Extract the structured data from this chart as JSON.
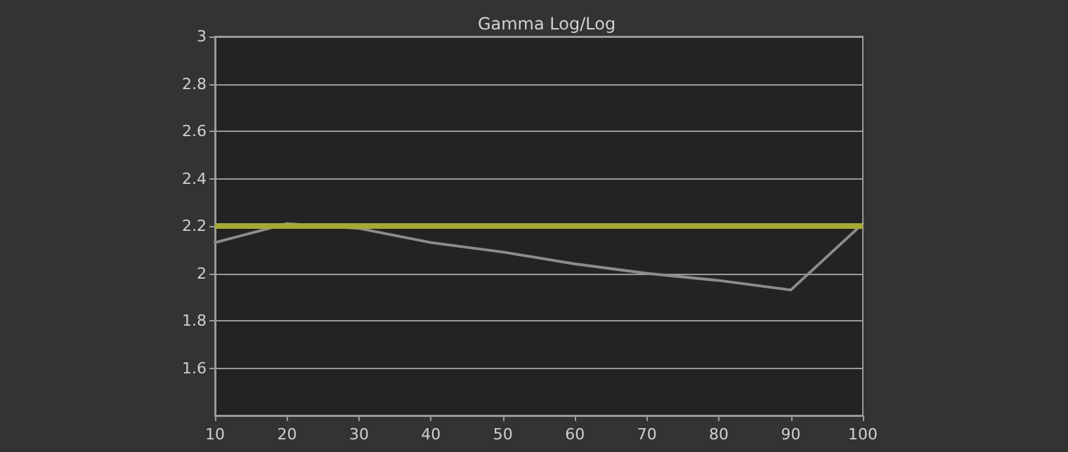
{
  "chart_data": {
    "type": "line",
    "title": "Gamma Log/Log",
    "x": [
      10,
      20,
      30,
      40,
      50,
      60,
      70,
      80,
      90,
      100
    ],
    "series": [
      {
        "color": "#8c8c8c",
        "values": [
          2.13,
          2.21,
          2.19,
          2.13,
          2.09,
          2.04,
          2.0,
          1.97,
          1.93,
          2.21
        ]
      }
    ],
    "xlim": [
      10,
      100
    ],
    "xticks": [
      10,
      20,
      30,
      40,
      50,
      60,
      70,
      80,
      90,
      100
    ],
    "ylim": [
      1.4,
      3
    ],
    "yticks": [
      1.6,
      1.8,
      2,
      2.2,
      2.4,
      2.6,
      2.8,
      3
    ],
    "ref_lines": [
      {
        "axis": "y",
        "value": 2.2,
        "color": "#a8a838"
      }
    ],
    "grid": "y",
    "marker": "none",
    "line_style": "solid"
  }
}
